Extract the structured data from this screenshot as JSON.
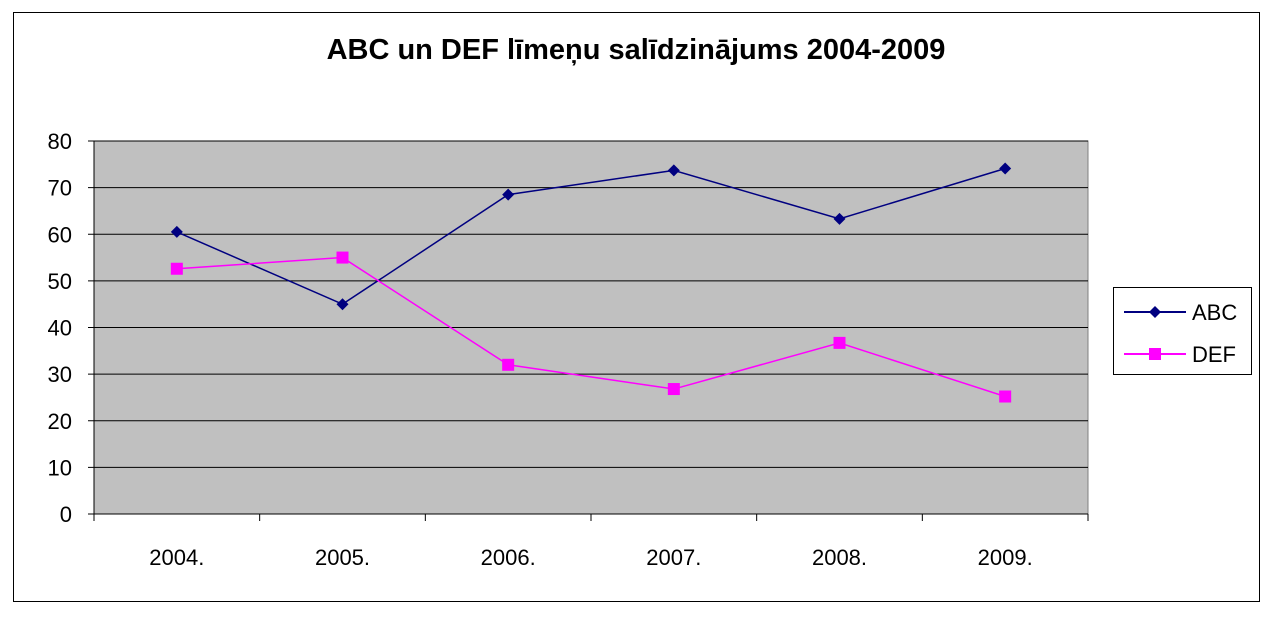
{
  "chart_data": {
    "type": "line",
    "title": "ABC un DEF līmeņu salīdzinājums 2004-2009",
    "categories": [
      "2004.",
      "2005.",
      "2006.",
      "2007.",
      "2008.",
      "2009."
    ],
    "series": [
      {
        "name": "ABC",
        "values": [
          60.5,
          45,
          68.5,
          73.7,
          63.3,
          74.1
        ],
        "color": "#000080",
        "marker": "diamond"
      },
      {
        "name": "DEF",
        "values": [
          52.6,
          55,
          32,
          26.8,
          36.7,
          25.2
        ],
        "color": "#ff00ff",
        "marker": "square"
      }
    ],
    "ylim": [
      0,
      80
    ],
    "yticks": [
      "0",
      "10",
      "20",
      "30",
      "40",
      "50",
      "60",
      "70",
      "80"
    ],
    "grid": true,
    "plot_background": "#c0c0c0",
    "legend_position": "right"
  }
}
